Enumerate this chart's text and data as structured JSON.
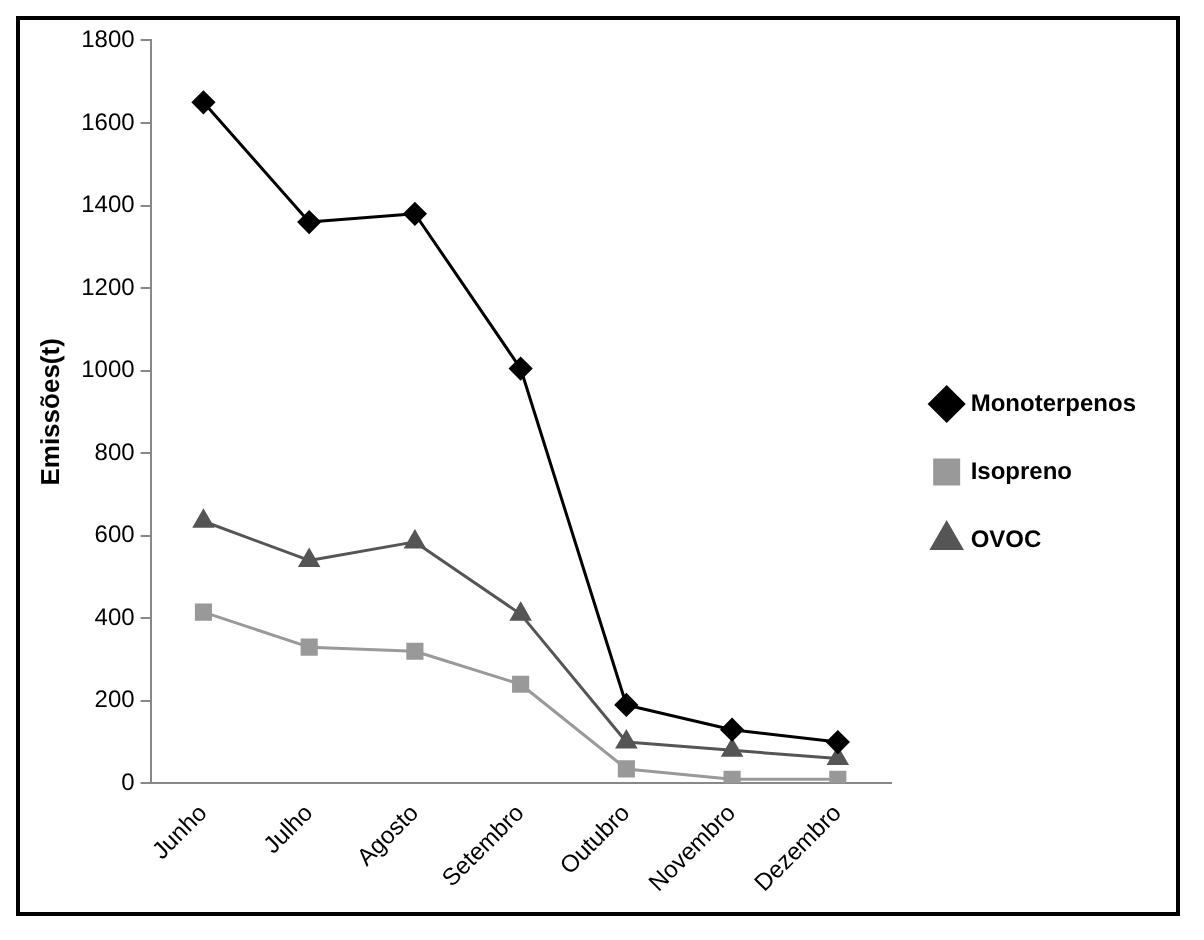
{
  "chart_data": {
    "type": "line",
    "ylabel": "Emissões(t)",
    "categories": [
      "Junho",
      "Julho",
      "Agosto",
      "Setembro",
      "Outubro",
      "Novembro",
      "Dezembro"
    ],
    "series": [
      {
        "name": "Monoterpenos",
        "color": "#000000",
        "marker": "diamond",
        "values": [
          1650,
          1360,
          1380,
          1005,
          190,
          130,
          100
        ]
      },
      {
        "name": "Isopreno",
        "color": "#999999",
        "marker": "square",
        "values": [
          415,
          330,
          320,
          240,
          35,
          10,
          10
        ]
      },
      {
        "name": "OVOC",
        "color": "#555555",
        "marker": "triangle",
        "values": [
          635,
          540,
          585,
          410,
          100,
          80,
          60
        ]
      }
    ],
    "ylim": [
      0,
      1800
    ],
    "yticks": [
      0,
      200,
      400,
      600,
      800,
      1000,
      1200,
      1400,
      1600,
      1800
    ],
    "grid": false,
    "legend": "right",
    "line_style": "solid"
  }
}
